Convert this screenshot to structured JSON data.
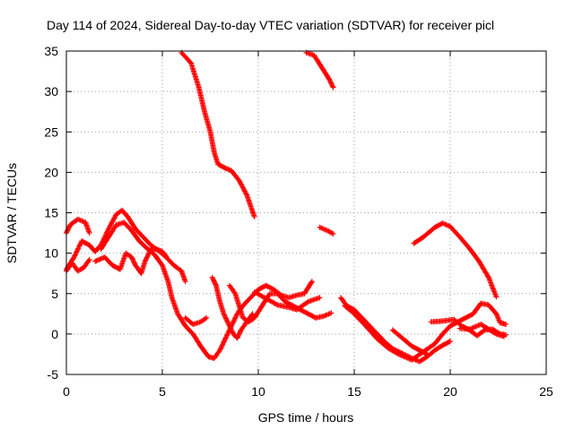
{
  "chart_data": {
    "type": "scatter",
    "title": "Day 114 of 2024, Sidereal Day-to-day VTEC variation (SDTVAR) for receiver picl",
    "xlabel": "GPS time / hours",
    "ylabel": "SDTVAR / TECUs",
    "xlim": [
      0,
      25
    ],
    "ylim": [
      -5,
      35
    ],
    "xticks": [
      0,
      5,
      10,
      15,
      20,
      25
    ],
    "yticks": [
      -5,
      0,
      5,
      10,
      15,
      20,
      25,
      30,
      35
    ],
    "grid": true,
    "marker": "+",
    "color": "#ff0000",
    "series": [
      {
        "name": "track-1",
        "points": [
          [
            6.0,
            34.8
          ],
          [
            6.5,
            33.5
          ],
          [
            6.9,
            30.5
          ],
          [
            7.2,
            27.5
          ],
          [
            7.5,
            25
          ],
          [
            7.7,
            22.5
          ],
          [
            7.9,
            21
          ],
          [
            8.3,
            20.5
          ],
          [
            8.6,
            20.2
          ],
          [
            9.0,
            19
          ],
          [
            9.4,
            17.2
          ],
          [
            9.8,
            14.5
          ]
        ]
      },
      {
        "name": "track-2",
        "points": [
          [
            12.5,
            34.8
          ],
          [
            12.9,
            34.5
          ],
          [
            13.3,
            33
          ],
          [
            13.7,
            31.5
          ],
          [
            13.9,
            30.5
          ]
        ]
      },
      {
        "name": "track-3",
        "points": [
          [
            13.2,
            13.2
          ],
          [
            13.6,
            12.8
          ],
          [
            13.9,
            12.4
          ]
        ]
      },
      {
        "name": "track-4",
        "points": [
          [
            18.1,
            11.2
          ],
          [
            18.6,
            12
          ],
          [
            19.2,
            13.2
          ],
          [
            19.6,
            13.7
          ],
          [
            20.0,
            13.3
          ],
          [
            20.5,
            12
          ],
          [
            21.0,
            10.6
          ],
          [
            21.5,
            9
          ],
          [
            22.0,
            7
          ],
          [
            22.4,
            4.6
          ]
        ]
      },
      {
        "name": "track-5",
        "points": [
          [
            0.0,
            12.5
          ],
          [
            0.2,
            13.5
          ],
          [
            0.6,
            14.2
          ],
          [
            1.0,
            13.8
          ],
          [
            1.2,
            12.5
          ]
        ]
      },
      {
        "name": "track-6",
        "points": [
          [
            0.0,
            8.0
          ],
          [
            0.4,
            9.5
          ],
          [
            0.8,
            11.5
          ],
          [
            1.2,
            11
          ],
          [
            1.5,
            10.2
          ],
          [
            1.8,
            11
          ],
          [
            2.2,
            13
          ],
          [
            2.6,
            14.8
          ],
          [
            2.9,
            15.3
          ],
          [
            3.2,
            14.5
          ],
          [
            3.6,
            13
          ],
          [
            4.0,
            12
          ],
          [
            4.4,
            11
          ],
          [
            4.8,
            10.3
          ],
          [
            5.2,
            9.5
          ],
          [
            5.6,
            8.5
          ],
          [
            6.0,
            7.8
          ],
          [
            6.2,
            6.5
          ]
        ]
      },
      {
        "name": "track-7",
        "points": [
          [
            0.0,
            7.8
          ],
          [
            0.3,
            8.8
          ],
          [
            0.6,
            7.8
          ],
          [
            0.9,
            8.2
          ],
          [
            1.2,
            9.2
          ]
        ]
      },
      {
        "name": "track-8",
        "points": [
          [
            1.8,
            10.5
          ],
          [
            2.2,
            12
          ],
          [
            2.6,
            13.5
          ],
          [
            3.0,
            13.8
          ],
          [
            3.4,
            12.8
          ],
          [
            3.8,
            11.5
          ],
          [
            4.2,
            10.6
          ],
          [
            4.6,
            9.8
          ],
          [
            5.0,
            8.5
          ],
          [
            5.3,
            6.5
          ],
          [
            5.5,
            4.5
          ],
          [
            5.8,
            2.5
          ],
          [
            6.2,
            1
          ],
          [
            6.6,
            0
          ],
          [
            7.0,
            -1.5
          ],
          [
            7.4,
            -2.8
          ],
          [
            7.7,
            -3
          ],
          [
            8.0,
            -2
          ],
          [
            8.3,
            -0.5
          ],
          [
            8.6,
            1
          ],
          [
            8.9,
            2.5
          ],
          [
            9.2,
            3.5
          ],
          [
            9.6,
            4.5
          ],
          [
            10.0,
            5.5
          ],
          [
            10.4,
            6
          ],
          [
            10.8,
            5.5
          ],
          [
            11.2,
            4.8
          ],
          [
            11.6,
            4.5
          ],
          [
            12.0,
            4.8
          ],
          [
            12.4,
            5
          ],
          [
            12.8,
            6.5
          ]
        ]
      },
      {
        "name": "track-9",
        "points": [
          [
            1.5,
            9.0
          ],
          [
            2.0,
            9.5
          ],
          [
            2.4,
            8.5
          ],
          [
            2.8,
            8.0
          ],
          [
            3.1,
            10.0
          ],
          [
            3.4,
            9.5
          ],
          [
            3.6,
            8.5
          ],
          [
            3.9,
            7.5
          ],
          [
            4.1,
            9.0
          ],
          [
            4.4,
            10.5
          ],
          [
            4.7,
            10.5
          ],
          [
            5.0,
            10.2
          ],
          [
            5.2,
            9.6
          ]
        ]
      },
      {
        "name": "track-10",
        "points": [
          [
            6.2,
            2.0
          ],
          [
            6.6,
            1.2
          ],
          [
            7.0,
            1.5
          ],
          [
            7.3,
            2.0
          ]
        ]
      },
      {
        "name": "track-11",
        "points": [
          [
            7.6,
            7.0
          ],
          [
            7.8,
            6.0
          ],
          [
            8.0,
            4.0
          ],
          [
            8.2,
            2.5
          ],
          [
            8.5,
            1.0
          ],
          [
            8.7,
            0.0
          ],
          [
            8.9,
            -0.5
          ],
          [
            9.1,
            0.5
          ],
          [
            9.4,
            1.5
          ],
          [
            9.7,
            2.5
          ]
        ]
      },
      {
        "name": "track-12",
        "points": [
          [
            8.5,
            6.0
          ],
          [
            8.8,
            5.0
          ],
          [
            9.0,
            3.5
          ],
          [
            9.2,
            2.0
          ],
          [
            9.5,
            1.5
          ],
          [
            9.8,
            2.0
          ],
          [
            10.2,
            3.5
          ],
          [
            10.6,
            5.0
          ],
          [
            11.0,
            5.0
          ],
          [
            11.4,
            4.0
          ],
          [
            11.8,
            3.5
          ],
          [
            12.2,
            3.0
          ],
          [
            12.6,
            2.5
          ],
          [
            13.0,
            2.0
          ],
          [
            13.4,
            2.2
          ],
          [
            13.8,
            2.6
          ]
        ]
      },
      {
        "name": "track-13",
        "points": [
          [
            9.8,
            5.2
          ],
          [
            10.4,
            4.4
          ],
          [
            11.0,
            3.6
          ],
          [
            11.6,
            3.3
          ],
          [
            12.0,
            3.0
          ],
          [
            12.6,
            4.0
          ],
          [
            13.2,
            4.5
          ]
        ]
      },
      {
        "name": "track-14",
        "points": [
          [
            14.3,
            4.5
          ],
          [
            14.6,
            3.5
          ],
          [
            15.0,
            3.0
          ],
          [
            15.4,
            2.0
          ],
          [
            15.8,
            1.0
          ],
          [
            16.2,
            0.0
          ],
          [
            16.6,
            -1.0
          ],
          [
            17.0,
            -1.8
          ],
          [
            17.5,
            -2.4
          ],
          [
            18.0,
            -3.0
          ],
          [
            18.4,
            -3.4
          ],
          [
            18.8,
            -2.8
          ],
          [
            19.2,
            -2.0
          ],
          [
            19.6,
            -1.4
          ],
          [
            20.0,
            -0.9
          ]
        ]
      },
      {
        "name": "track-15",
        "points": [
          [
            14.5,
            3.5
          ],
          [
            15.0,
            2.5
          ],
          [
            15.6,
            1.0
          ],
          [
            16.2,
            -0.6
          ],
          [
            16.8,
            -1.8
          ],
          [
            17.4,
            -2.6
          ],
          [
            18.0,
            -3.2
          ],
          [
            18.6,
            -2.2
          ],
          [
            19.2,
            -1.2
          ],
          [
            19.6,
            0.0
          ],
          [
            20.0,
            1.0
          ],
          [
            20.4,
            1.5
          ],
          [
            20.8,
            2.0
          ],
          [
            21.2,
            2.5
          ],
          [
            21.6,
            3.8
          ],
          [
            22.0,
            3.6
          ],
          [
            22.4,
            2.5
          ],
          [
            22.6,
            1.4
          ],
          [
            22.9,
            1.2
          ]
        ]
      },
      {
        "name": "track-16",
        "points": [
          [
            17.0,
            0.5
          ],
          [
            17.5,
            -0.5
          ],
          [
            18.0,
            -1.5
          ],
          [
            18.4,
            -2.0
          ],
          [
            18.8,
            -2.5
          ]
        ]
      },
      {
        "name": "track-17",
        "points": [
          [
            19.0,
            1.5
          ],
          [
            19.6,
            1.6
          ],
          [
            20.2,
            1.8
          ],
          [
            20.6,
            1.0
          ],
          [
            21.0,
            0.5
          ],
          [
            21.4,
            -0.2
          ],
          [
            21.8,
            0.5
          ],
          [
            22.2,
            0.6
          ],
          [
            22.6,
            0.0
          ],
          [
            22.9,
            -0.1
          ]
        ]
      },
      {
        "name": "track-18",
        "points": [
          [
            20.5,
            0.7
          ],
          [
            21.0,
            0.6
          ],
          [
            21.6,
            1.2
          ],
          [
            22.0,
            0.6
          ],
          [
            22.4,
            0.0
          ],
          [
            22.8,
            -0.3
          ]
        ]
      }
    ]
  }
}
